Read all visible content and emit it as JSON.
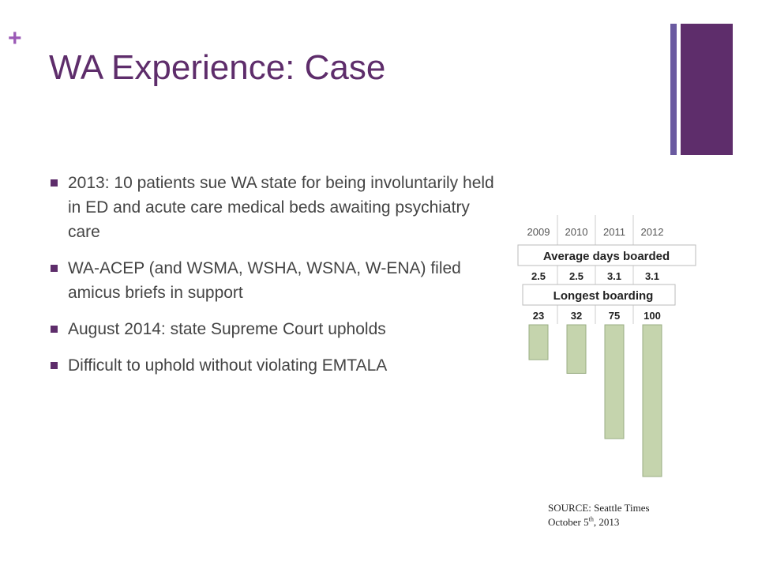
{
  "slide": {
    "plus_symbol": "+",
    "title": "WA Experience: Case",
    "bullets": [
      "2013: 10 patients sue WA state for being involuntarily held in ED and acute care medical beds awaiting psychiatry care",
      "WA-ACEP (and WSMA, WSHA, WSNA, W-ENA) filed amicus briefs in support",
      "August 2014: state Supreme Court upholds",
      "Difficult to uphold without violating EMTALA"
    ],
    "source": {
      "line1": "SOURCE: Seattle Times",
      "line2_prefix": "October 5",
      "line2_sup": "th",
      "line2_suffix": ", 2013"
    }
  },
  "colors": {
    "accent_purple": "#5e2d6b",
    "accent_blue_purple": "#6a5aa0",
    "plus_color": "#9b59b6",
    "bar_fill": "#c5d4ad",
    "bar_stroke": "#9aae84"
  },
  "chart_data": {
    "type": "bar",
    "categories": [
      "2009",
      "2010",
      "2011",
      "2012"
    ],
    "bands": [
      {
        "label": "Average days boarded",
        "values": [
          "2.5",
          "2.5",
          "3.1",
          "3.1"
        ]
      },
      {
        "label": "Longest boarding",
        "values": [
          "23",
          "32",
          "75",
          "100"
        ]
      }
    ],
    "series": [
      {
        "values": [
          23,
          32,
          75,
          100
        ]
      }
    ],
    "ylim": [
      0,
      100
    ],
    "orientation": "bars-hang-down"
  }
}
